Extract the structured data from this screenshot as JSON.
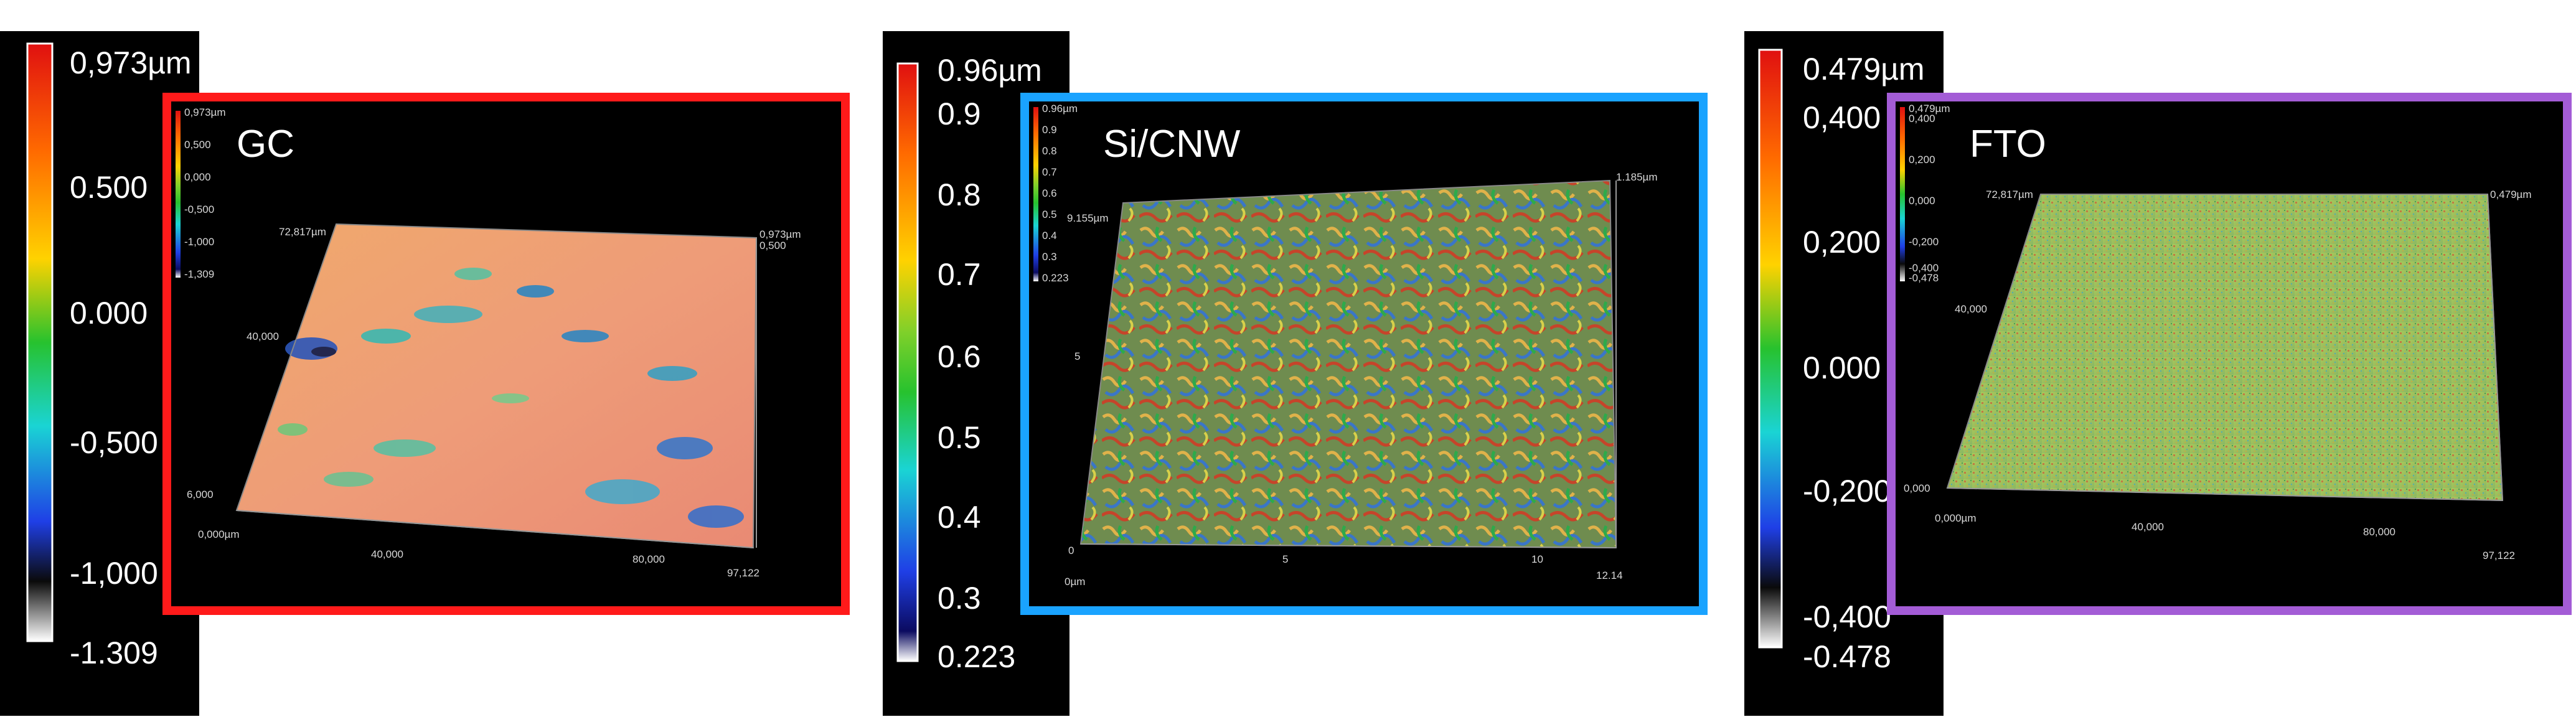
{
  "panels": [
    {
      "name": "GC",
      "frame_color": "#ff1a1a",
      "scale": {
        "labels": [
          "0,973µm",
          "0.500",
          "0.000",
          "-0,500",
          "-1,000",
          "-1.309"
        ]
      },
      "mini_scale": [
        "0,973µm",
        "0,500",
        "0,000",
        "-0,500",
        "-1,000",
        "-1,309"
      ],
      "axis_labels": [
        "72,817µm",
        "40,000",
        "6,000",
        "0,000µm",
        "40,000",
        "80,000",
        "97,122",
        "0,973µm",
        "0,500"
      ]
    },
    {
      "name": "Si/CNW",
      "frame_color": "#1aa3ff",
      "scale": {
        "labels": [
          "0.96µm",
          "0.9",
          "0.8",
          "0.7",
          "0.6",
          "0.5",
          "0.4",
          "0.3",
          "0.223"
        ]
      },
      "mini_scale": [
        "0.96µm",
        "0.9",
        "0.8",
        "0.7",
        "0.6",
        "0.5",
        "0.4",
        "0.3",
        "0.223"
      ],
      "axis_labels": [
        "9.155µm",
        "5",
        "0",
        "0µm",
        "5",
        "10",
        "12.14",
        "1.185µm"
      ]
    },
    {
      "name": "FTO",
      "frame_color": "#a35cd6",
      "scale": {
        "labels": [
          "0.479µm",
          "0,400",
          "0,200",
          "0.000",
          "-0,200",
          "-0,400",
          "-0.478"
        ]
      },
      "mini_scale": [
        "0,479µm",
        "0,400",
        "0,200",
        "0,000",
        "-0,200",
        "-0,400",
        "-0,478"
      ],
      "axis_labels": [
        "72,817µm",
        "40,000",
        "0,000",
        "0,000µm",
        "40,000",
        "80,000",
        "97,122",
        "0,479µm"
      ]
    }
  ]
}
